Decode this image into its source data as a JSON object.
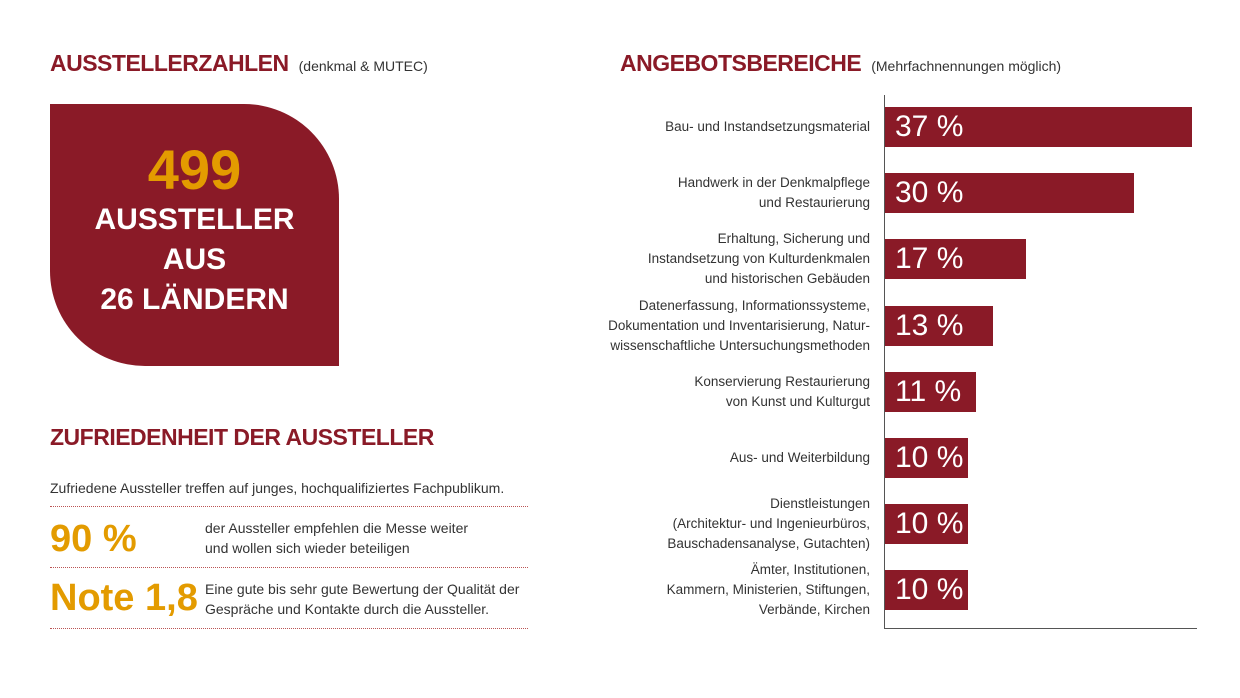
{
  "left": {
    "title": "AUSSTELLERZAHLEN",
    "subtitle": "(denkmal & MUTEC)",
    "box": {
      "number": "499",
      "line1": "AUSSTELLER",
      "line2": "AUS",
      "line3": "26 LÄNDERN"
    },
    "satisfaction_title": "ZUFRIEDENHEIT DER AUSSTELLER",
    "intro": "Zufriedene Aussteller treffen auf junges, hochqualifiziertes Fachpublikum.",
    "stats": [
      {
        "value": "90 %",
        "text1": "der Aussteller empfehlen die Messe weiter",
        "text2": "und wollen sich wieder beteiligen"
      },
      {
        "value": "Note 1,8",
        "text1": "Eine gute bis sehr gute Bewertung der Qualität der",
        "text2": "Gespräche und Kontakte durch die Aussteller."
      }
    ]
  },
  "chart_data": {
    "type": "bar",
    "orientation": "horizontal",
    "title": "ANGEBOTSBEREICHE",
    "subtitle": "(Mehrfachnennungen möglich)",
    "categories": [
      [
        "Bau- und Instandsetzungsmaterial"
      ],
      [
        "Handwerk in der Denkmalpflege",
        "und Restaurierung"
      ],
      [
        "Erhaltung, Sicherung und",
        "Instandsetzung von Kulturdenkmalen",
        "und historischen Gebäuden"
      ],
      [
        "Datenerfassung, Informationssysteme,",
        "Dokumentation und Inventarisierung, Natur-",
        "wissenschaftliche Untersuchungsmethoden"
      ],
      [
        "Konservierung Restaurierung",
        "von Kunst und Kulturgut"
      ],
      [
        "Aus- und Weiterbildung"
      ],
      [
        "Dienstleistungen",
        "(Architektur- und Ingenieurbüros,",
        "Bauschadensanalyse, Gutachten)"
      ],
      [
        "Ämter, Institutionen,",
        "Kammern, Ministerien, Stiftungen,",
        "Verbände, Kirchen"
      ]
    ],
    "values": [
      37,
      30,
      17,
      13,
      11,
      10,
      10,
      10
    ],
    "labels": [
      "37 %",
      "30 %",
      "17 %",
      "13 %",
      "11 %",
      "10 %",
      "10 %",
      "10 %"
    ],
    "color": "#8a1a27"
  }
}
